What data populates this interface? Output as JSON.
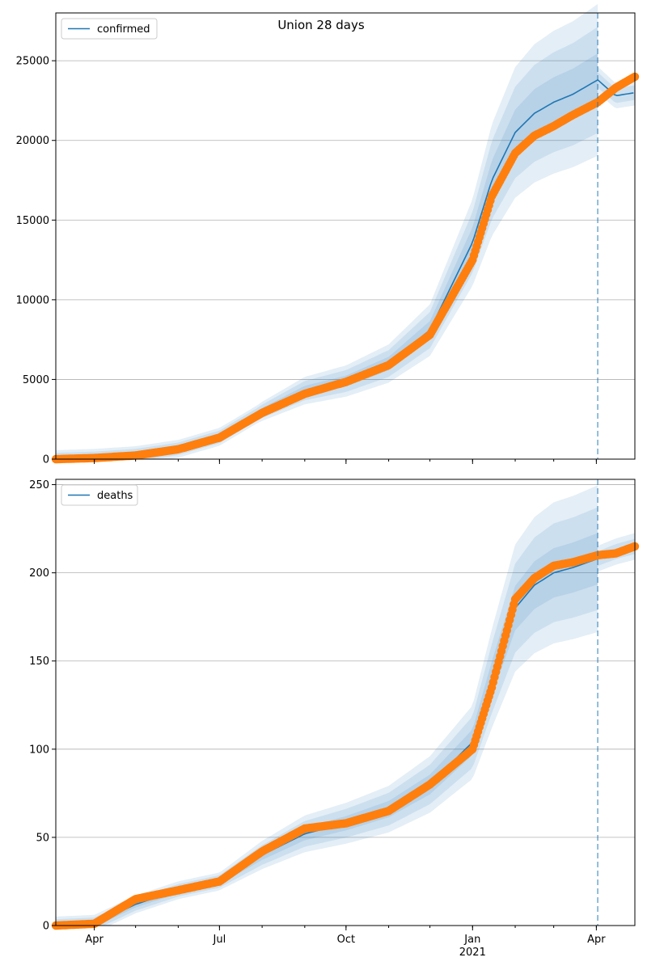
{
  "title": "Union 28 days",
  "colors": {
    "line": "#1f77b4",
    "band": "#1f77b4",
    "points": "#ff7f0e",
    "grid": "#b0b0b0",
    "vline": "#1f77b4"
  },
  "x_ticks": [
    {
      "date": "2020-04-01",
      "label": "Apr",
      "sublabel": ""
    },
    {
      "date": "2020-07-01",
      "label": "Jul",
      "sublabel": ""
    },
    {
      "date": "2020-10-01",
      "label": "Oct",
      "sublabel": ""
    },
    {
      "date": "2021-01-01",
      "label": "Jan",
      "sublabel": "2021"
    },
    {
      "date": "2021-04-01",
      "label": "Apr",
      "sublabel": ""
    }
  ],
  "x_range": [
    "2020-03-04",
    "2021-04-29"
  ],
  "forecast_start": "2021-04-02",
  "chart_data": [
    {
      "type": "line",
      "legend": "confirmed",
      "legend_position": "top-left",
      "ylim": [
        0,
        28000
      ],
      "yticks": [
        0,
        5000,
        10000,
        15000,
        20000,
        25000
      ],
      "grid": true,
      "model_curve": {
        "x": [
          "2020-03-04",
          "2020-04-01",
          "2020-05-01",
          "2020-06-01",
          "2020-07-01",
          "2020-08-01",
          "2020-09-01",
          "2020-10-01",
          "2020-11-01",
          "2020-12-01",
          "2021-01-01",
          "2021-01-15",
          "2021-02-01",
          "2021-02-15",
          "2021-03-01",
          "2021-03-15",
          "2021-04-02",
          "2021-04-15",
          "2021-04-29"
        ],
        "y": [
          0,
          80,
          250,
          650,
          1400,
          3000,
          4300,
          4900,
          6000,
          8100,
          13600,
          17500,
          20500,
          21700,
          22400,
          22900,
          23800,
          22800,
          23000
        ]
      },
      "band_half_widths": [
        0.07,
        0.14,
        0.2
      ],
      "observed": {
        "x": [
          "2020-03-04",
          "2020-04-01",
          "2020-05-01",
          "2020-06-01",
          "2020-07-01",
          "2020-08-01",
          "2020-09-01",
          "2020-10-01",
          "2020-11-01",
          "2020-12-01",
          "2021-01-01",
          "2021-01-15",
          "2021-02-01",
          "2021-02-15",
          "2021-03-01",
          "2021-03-15",
          "2021-04-02",
          "2021-04-15",
          "2021-04-29"
        ],
        "y": [
          0,
          70,
          230,
          620,
          1350,
          2900,
          4100,
          4850,
          5900,
          7800,
          12500,
          16500,
          19200,
          20300,
          20900,
          21600,
          22400,
          23300,
          24000
        ]
      }
    },
    {
      "type": "line",
      "legend": "deaths",
      "legend_position": "top-left",
      "ylim": [
        0,
        253
      ],
      "yticks": [
        0,
        50,
        100,
        150,
        200,
        250
      ],
      "grid": true,
      "model_curve": {
        "x": [
          "2020-03-04",
          "2020-04-01",
          "2020-05-01",
          "2020-06-01",
          "2020-07-01",
          "2020-08-01",
          "2020-09-01",
          "2020-10-01",
          "2020-11-01",
          "2020-12-01",
          "2021-01-01",
          "2021-01-15",
          "2021-02-01",
          "2021-02-15",
          "2021-03-01",
          "2021-03-15",
          "2021-04-02",
          "2021-04-15",
          "2021-04-29"
        ],
        "y": [
          0,
          1,
          12,
          20,
          25,
          40,
          52,
          58,
          66,
          80,
          104,
          140,
          180,
          193,
          200,
          203,
          208,
          212,
          215
        ]
      },
      "band_half_widths": [
        0.07,
        0.14,
        0.2
      ],
      "observed": {
        "x": [
          "2020-03-04",
          "2020-04-01",
          "2020-05-01",
          "2020-06-01",
          "2020-07-01",
          "2020-08-01",
          "2020-09-01",
          "2020-10-01",
          "2020-11-01",
          "2020-12-01",
          "2021-01-01",
          "2021-01-15",
          "2021-02-01",
          "2021-02-15",
          "2021-03-01",
          "2021-03-15",
          "2021-04-02",
          "2021-04-15",
          "2021-04-29"
        ],
        "y": [
          0,
          1,
          15,
          20,
          25,
          42,
          55,
          58,
          65,
          80,
          100,
          135,
          185,
          197,
          204,
          206,
          210,
          211,
          215
        ]
      }
    }
  ]
}
